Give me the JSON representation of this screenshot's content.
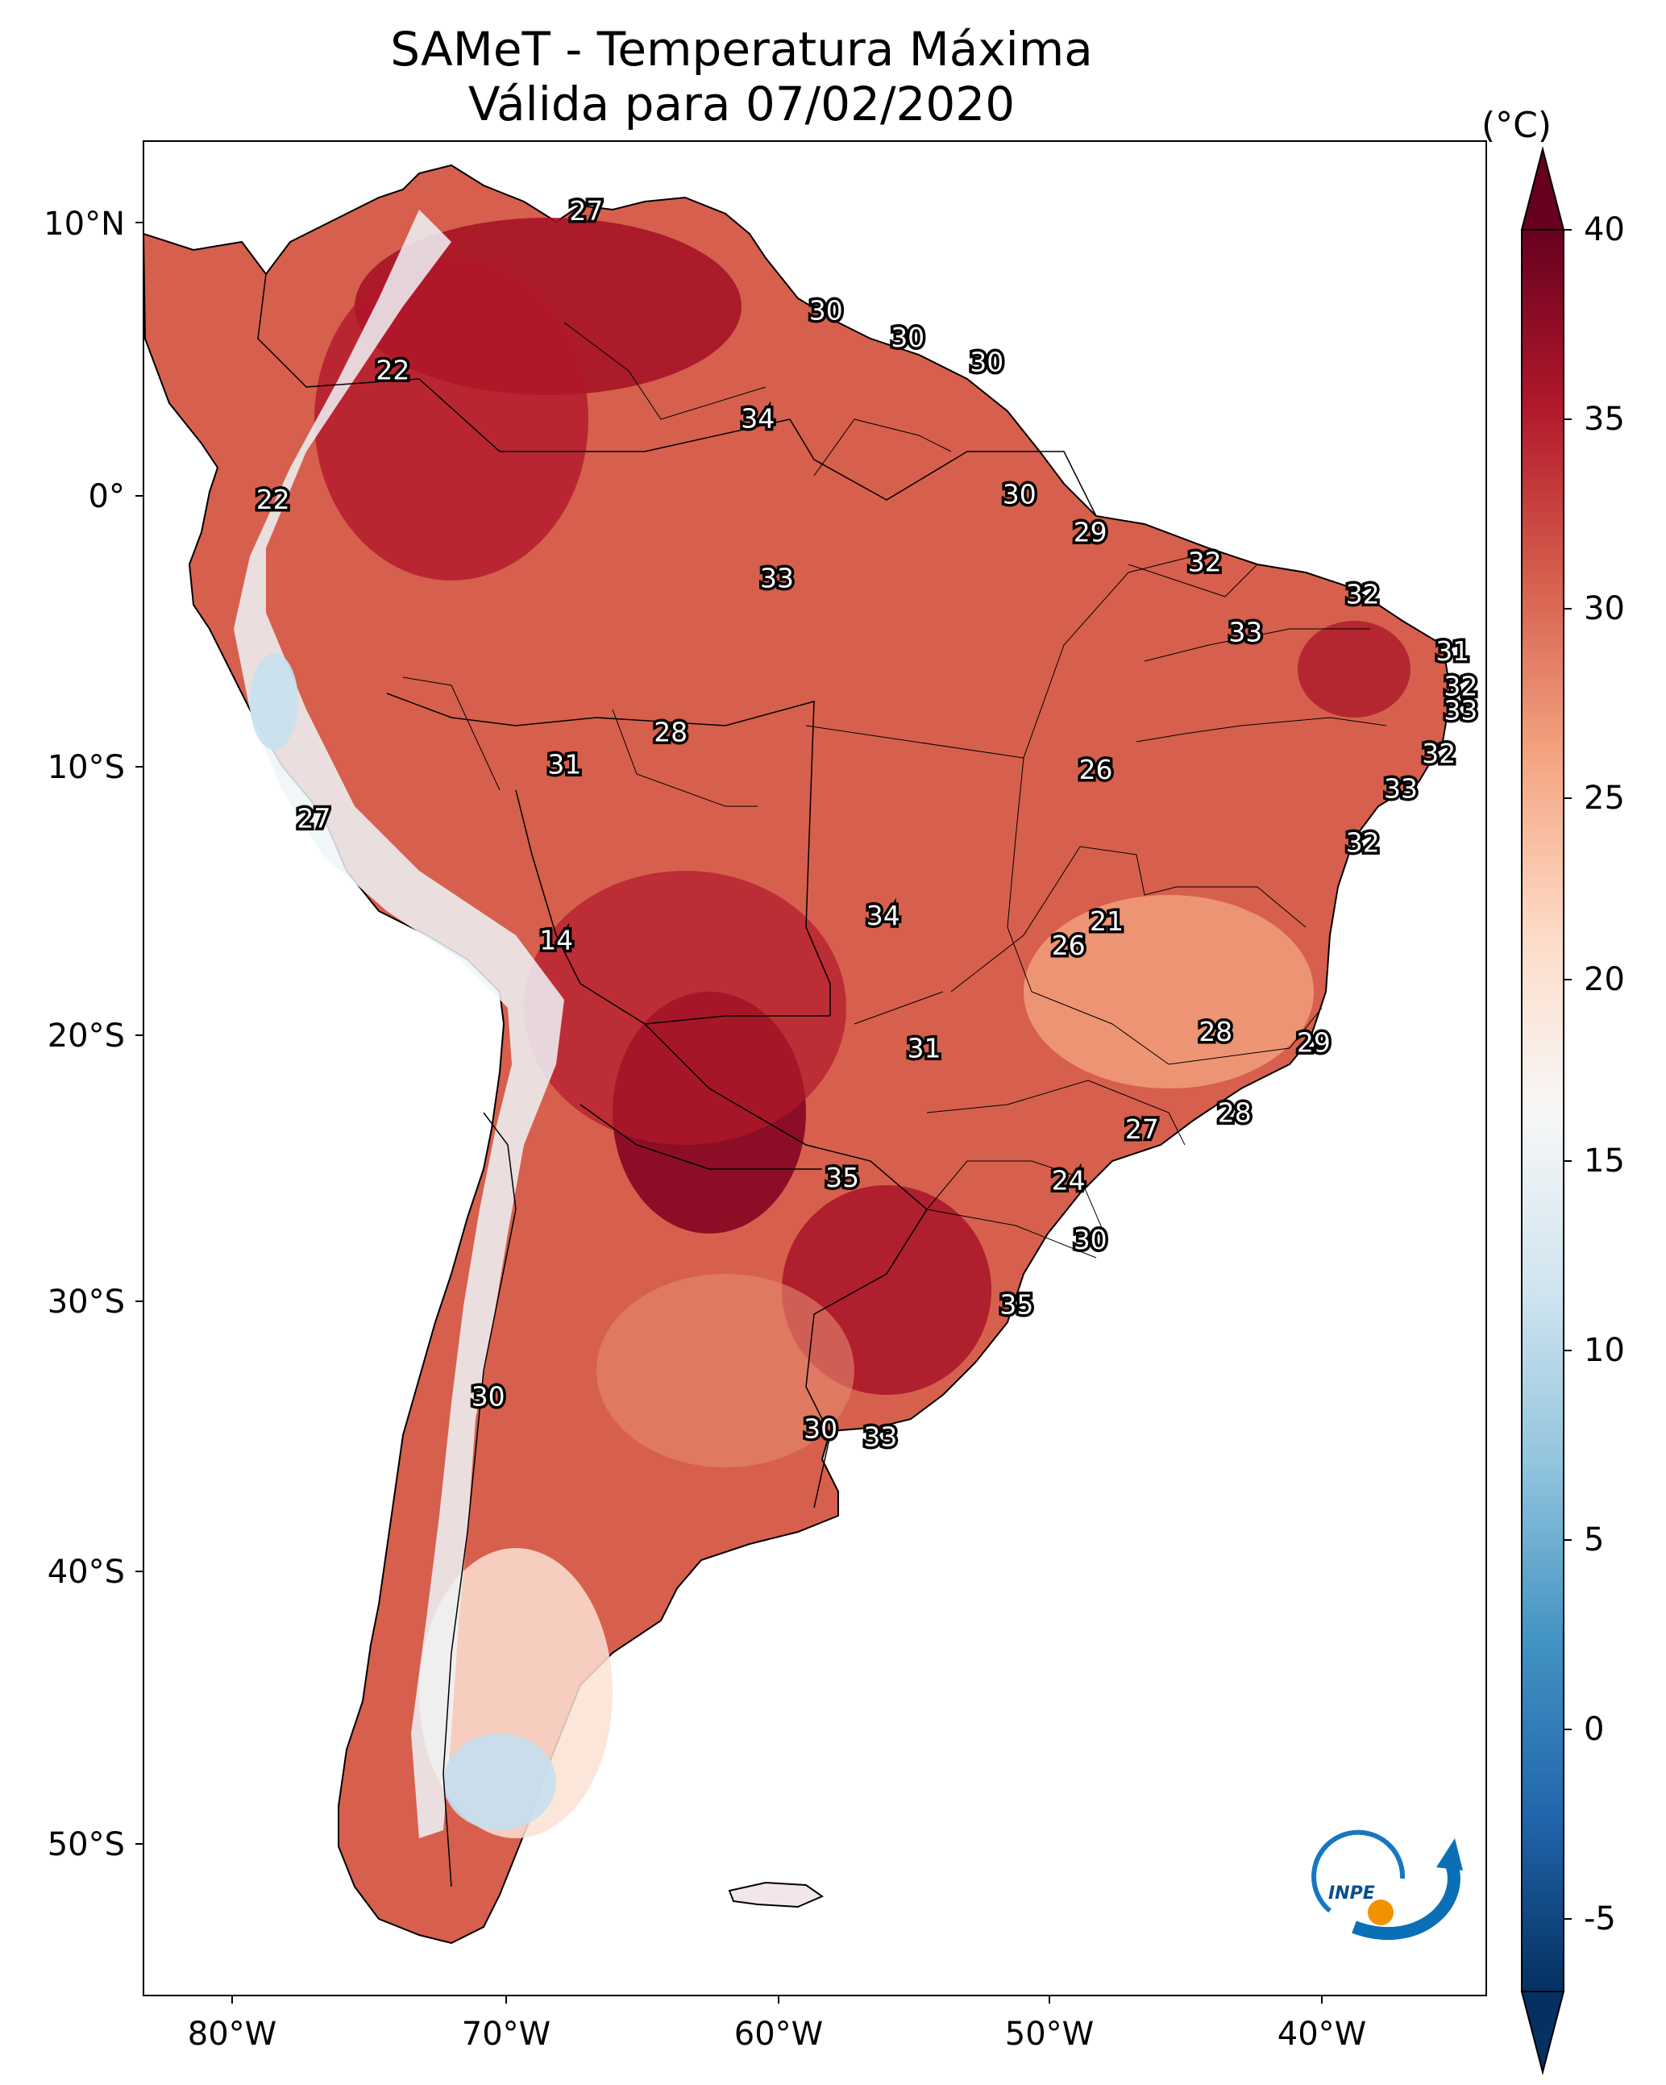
{
  "title": {
    "line1": "SAMeT - Temperatura Máxima",
    "line2": "Válida para 07/02/2020"
  },
  "axes": {
    "lat_labels": [
      "10°N",
      "0°",
      "10°S",
      "20°S",
      "30°S",
      "40°S",
      "50°S"
    ],
    "lon_labels": [
      "80°W",
      "70°W",
      "60°W",
      "50°W",
      "40°W"
    ]
  },
  "colorbar": {
    "unit": "(°C)",
    "ticks": [
      "40",
      "35",
      "30",
      "25",
      "20",
      "15",
      "10",
      "5",
      "0",
      "-5"
    ],
    "range": [
      -5,
      40
    ],
    "colors": [
      "#053061",
      "#2166ac",
      "#4393c3",
      "#92c5de",
      "#d1e5f0",
      "#f7f7f7",
      "#fddbc7",
      "#f4a582",
      "#d6604d",
      "#b2182b",
      "#67001f"
    ]
  },
  "stations": [
    {
      "value": "27",
      "lon": -67.0,
      "lat": 10.5
    },
    {
      "value": "30",
      "lon": -58.2,
      "lat": 6.8
    },
    {
      "value": "30",
      "lon": -55.2,
      "lat": 5.8
    },
    {
      "value": "30",
      "lon": -52.3,
      "lat": 4.9
    },
    {
      "value": "22",
      "lon": -74.1,
      "lat": 4.6
    },
    {
      "value": "34",
      "lon": -60.7,
      "lat": 2.8
    },
    {
      "value": "22",
      "lon": -78.5,
      "lat": -0.2
    },
    {
      "value": "30",
      "lon": -51.1,
      "lat": 0.0
    },
    {
      "value": "29",
      "lon": -48.5,
      "lat": -1.4
    },
    {
      "value": "32",
      "lon": -44.3,
      "lat": -2.5
    },
    {
      "value": "33",
      "lon": -60.0,
      "lat": -3.1
    },
    {
      "value": "32",
      "lon": -38.5,
      "lat": -3.7
    },
    {
      "value": "33",
      "lon": -42.8,
      "lat": -5.1
    },
    {
      "value": "31",
      "lon": -35.2,
      "lat": -5.8
    },
    {
      "value": "32",
      "lon": -34.9,
      "lat": -7.1
    },
    {
      "value": "33",
      "lon": -34.9,
      "lat": -8.0
    },
    {
      "value": "28",
      "lon": -63.9,
      "lat": -8.8
    },
    {
      "value": "31",
      "lon": -67.8,
      "lat": -10.0
    },
    {
      "value": "32",
      "lon": -35.7,
      "lat": -9.6
    },
    {
      "value": "26",
      "lon": -48.3,
      "lat": -10.2
    },
    {
      "value": "33",
      "lon": -37.1,
      "lat": -10.9
    },
    {
      "value": "27",
      "lon": -77.0,
      "lat": -12.0
    },
    {
      "value": "32",
      "lon": -38.5,
      "lat": -12.9
    },
    {
      "value": "34",
      "lon": -56.1,
      "lat": -15.6
    },
    {
      "value": "21",
      "lon": -47.9,
      "lat": -15.8
    },
    {
      "value": "26",
      "lon": -49.3,
      "lat": -16.7
    },
    {
      "value": "14",
      "lon": -68.1,
      "lat": -16.5
    },
    {
      "value": "28",
      "lon": -43.9,
      "lat": -19.9
    },
    {
      "value": "29",
      "lon": -40.3,
      "lat": -20.3
    },
    {
      "value": "31",
      "lon": -54.6,
      "lat": -20.5
    },
    {
      "value": "28",
      "lon": -43.2,
      "lat": -22.9
    },
    {
      "value": "27",
      "lon": -46.6,
      "lat": -23.5
    },
    {
      "value": "35",
      "lon": -57.6,
      "lat": -25.3
    },
    {
      "value": "24",
      "lon": -49.3,
      "lat": -25.4
    },
    {
      "value": "30",
      "lon": -48.5,
      "lat": -27.6
    },
    {
      "value": "35",
      "lon": -51.2,
      "lat": -30.0
    },
    {
      "value": "30",
      "lon": -70.6,
      "lat": -33.4
    },
    {
      "value": "30",
      "lon": -58.4,
      "lat": -34.6
    },
    {
      "value": "33",
      "lon": -56.2,
      "lat": -34.9
    }
  ],
  "logo": {
    "text": "INPE"
  }
}
